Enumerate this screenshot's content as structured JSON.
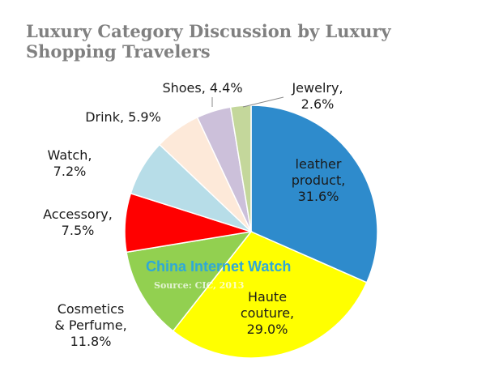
{
  "chart_data": {
    "type": "pie",
    "title": "Luxury Category Discussion by Luxury Shopping Travelers",
    "slices": [
      {
        "label": "leather product",
        "lines": [
          "leather",
          "product,",
          "31.6%"
        ],
        "value": 31.6,
        "color": "#2e8bcc"
      },
      {
        "label": "Haute couture",
        "lines": [
          "Haute",
          "couture,",
          "29.0%"
        ],
        "value": 29.0,
        "color": "#ffff00"
      },
      {
        "label": "Cosmetics & Perfume",
        "lines": [
          "Cosmetics",
          "& Perfume,",
          "11.8%"
        ],
        "value": 11.8,
        "color": "#92d050"
      },
      {
        "label": "Accessory",
        "lines": [
          "Accessory,",
          "7.5%"
        ],
        "value": 7.5,
        "color": "#ff0000"
      },
      {
        "label": "Watch",
        "lines": [
          "Watch,",
          "7.2%"
        ],
        "value": 7.2,
        "color": "#b7dde8"
      },
      {
        "label": "Drink",
        "lines": [
          "Drink, 5.9%"
        ],
        "value": 5.9,
        "color": "#fde9d9"
      },
      {
        "label": "Shoes",
        "lines": [
          "Shoes, 4.4%"
        ],
        "value": 4.4,
        "color": "#ccc0da"
      },
      {
        "label": "Jewelry",
        "lines": [
          "Jewelry,",
          "2.6%"
        ],
        "value": 2.6,
        "color": "#c4d79b"
      }
    ]
  },
  "watermark": {
    "name": "China Internet Watch",
    "source": "Source: CIC, 2013"
  }
}
